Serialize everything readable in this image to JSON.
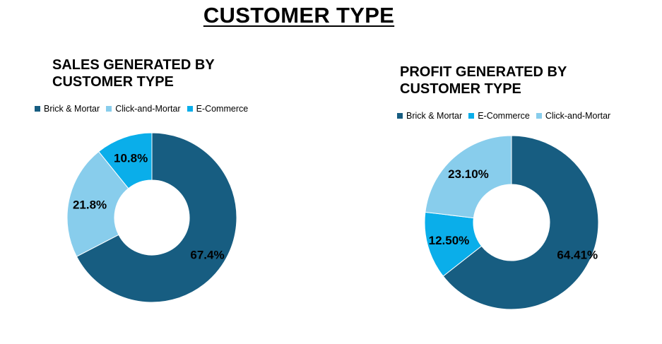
{
  "page": {
    "title": "CUSTOMER TYPE"
  },
  "chart_data": [
    {
      "type": "pie",
      "title": "SALES GENERATED BY CUSTOMER TYPE",
      "title_lines": [
        "SALES GENERATED BY",
        "CUSTOMER TYPE"
      ],
      "legend": [
        "Brick & Mortar",
        "Click-and-Mortar",
        "E-Commerce"
      ],
      "legend_position": "top",
      "series": [
        {
          "name": "Brick & Mortar",
          "value": 67.4,
          "label": "67.4%",
          "color": "#175d81"
        },
        {
          "name": "Click-and-Mortar",
          "value": 21.8,
          "label": "21.8%",
          "color": "#88cdec"
        },
        {
          "name": "E-Commerce",
          "value": 10.8,
          "label": "10.8%",
          "color": "#0aaeea"
        }
      ]
    },
    {
      "type": "pie",
      "title": "PROFIT GENERATED BY CUSTOMER TYPE",
      "title_lines": [
        "PROFIT GENERATED BY",
        "CUSTOMER TYPE"
      ],
      "legend": [
        "Brick & Mortar",
        "E-Commerce",
        "Click-and-Mortar"
      ],
      "legend_position": "top",
      "series": [
        {
          "name": "Brick & Mortar",
          "value": 64.41,
          "label": "64.41%",
          "color": "#175d81"
        },
        {
          "name": "E-Commerce",
          "value": 12.5,
          "label": "12.50%",
          "color": "#0aaeea"
        },
        {
          "name": "Click-and-Mortar",
          "value": 23.1,
          "label": "23.10%",
          "color": "#88cdec"
        }
      ]
    }
  ]
}
